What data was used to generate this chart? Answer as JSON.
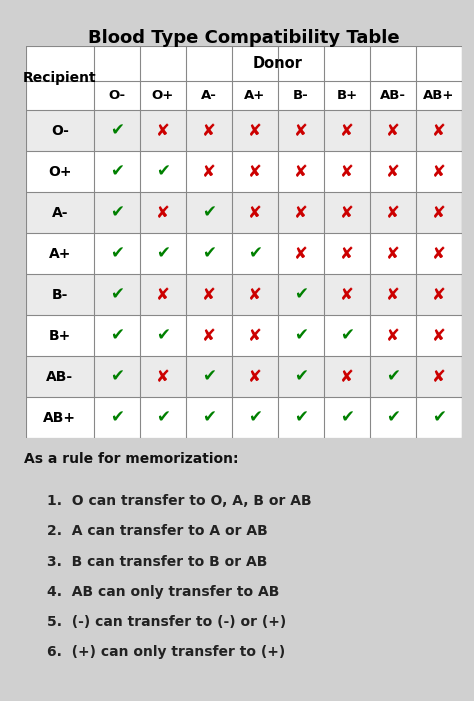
{
  "title": "Blood Type Compatibility Table",
  "donors_raw": [
    "O-",
    "O+",
    "A-",
    "A+",
    "B-",
    "B+",
    "AB-",
    "AB+"
  ],
  "recipients_raw": [
    "O-",
    "O+",
    "A-",
    "A+",
    "B-",
    "B+",
    "AB-",
    "AB+"
  ],
  "compatibility": [
    [
      1,
      0,
      0,
      0,
      0,
      0,
      0,
      0
    ],
    [
      1,
      1,
      0,
      0,
      0,
      0,
      0,
      0
    ],
    [
      1,
      0,
      1,
      0,
      0,
      0,
      0,
      0
    ],
    [
      1,
      1,
      1,
      1,
      0,
      0,
      0,
      0
    ],
    [
      1,
      0,
      0,
      0,
      1,
      0,
      0,
      0
    ],
    [
      1,
      1,
      0,
      0,
      1,
      1,
      0,
      0
    ],
    [
      1,
      0,
      1,
      0,
      1,
      0,
      1,
      0
    ],
    [
      1,
      1,
      1,
      1,
      1,
      1,
      1,
      1
    ]
  ],
  "check_color": "#008000",
  "cross_color": "#cc0000",
  "bg_color": "#d0d0d0",
  "title_fontsize": 13,
  "header_fontsize": 10.5,
  "label_fontsize": 10,
  "cell_fontsize": 12,
  "rules_header": "As a rule for memorization:",
  "rules_header_fontsize": 10,
  "rules": [
    "1.  O can transfer to O, A, B or AB",
    "2.  A can transfer to A or AB",
    "3.  B can transfer to B or AB",
    "4.  AB can only transfer to AB",
    "5.  (-) can transfer to (-) or (+)",
    "6.  (+) can only transfer to (+)"
  ],
  "rules_fontsize": 10
}
